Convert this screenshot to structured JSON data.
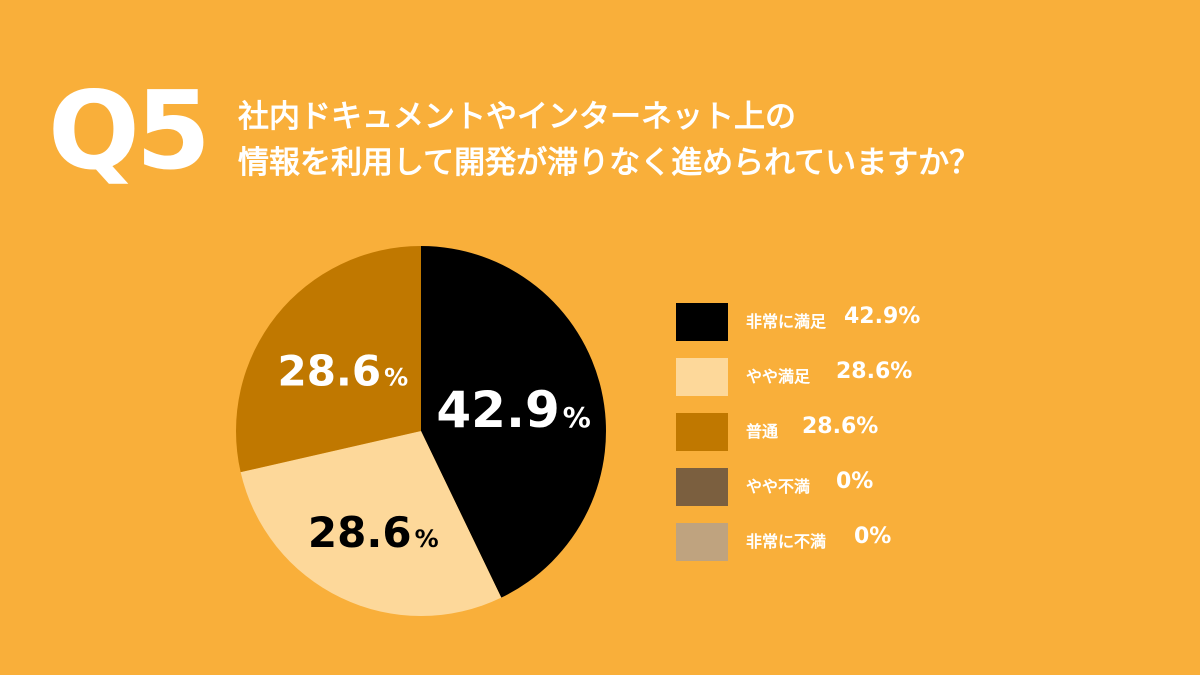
{
  "header": {
    "question_number": "Q5",
    "question_lines": [
      "社内ドキュメントやインターネット上の",
      "情報を利用して開発が滞りなく進められていますか？"
    ]
  },
  "colors": {
    "background": "#F9AF3A",
    "text": "#FFFFFF"
  },
  "chart_data": {
    "type": "pie",
    "title": "",
    "start_angle_deg": 0,
    "direction": "clockwise",
    "slices": [
      {
        "label": "非常に満足",
        "value": 42.9,
        "value_text": "42.9%",
        "pie_label": "42.9",
        "color": "#000000",
        "label_color": "#FFFFFF"
      },
      {
        "label": "やや満足",
        "value": 28.6,
        "value_text": "28.6%",
        "pie_label": "28.6",
        "color": "#FDD89A",
        "label_color": "#000000"
      },
      {
        "label": "普通",
        "value": 28.6,
        "value_text": "28.6%",
        "pie_label": "28.6",
        "color": "#C07800",
        "label_color": "#FFFFFF"
      },
      {
        "label": "やや不満",
        "value": 0,
        "value_text": "0%",
        "pie_label": "",
        "color": "#7B5F3F",
        "label_color": "#FFFFFF"
      },
      {
        "label": "非常に不満",
        "value": 0,
        "value_text": "0%",
        "pie_label": "",
        "color": "#BFA37F",
        "label_color": "#FFFFFF"
      }
    ],
    "pct_sign": "%",
    "legend_position": "right"
  }
}
